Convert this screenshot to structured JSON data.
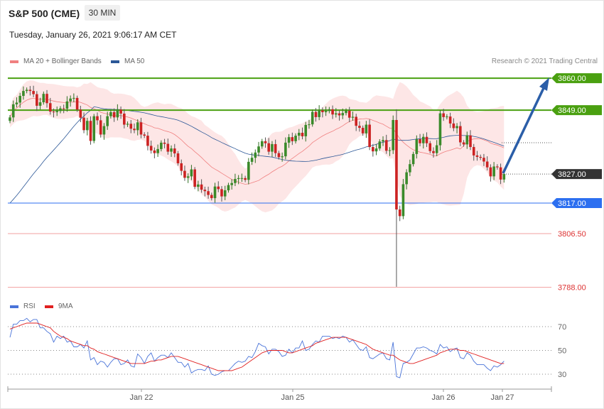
{
  "header": {
    "title": "S&P 500 (CME)",
    "timeframe": "30 MIN",
    "datetime": "Tuesday, January 26, 2021 9:06:17 AM CET",
    "copyright": "Research © 2021 Trading Central"
  },
  "legend": {
    "ma20": "MA 20 + Bollinger Bands",
    "ma50": "MA 50",
    "rsi": "RSI",
    "rsi_ma": "9MA"
  },
  "colors": {
    "ma20": "#f08080",
    "ma50": "#2b5797",
    "rsi": "#4a74d9",
    "rsi_ma": "#e02020",
    "up": "#3a8a2a",
    "down": "#cc2222",
    "resistance": "#4aa010",
    "support": "#2c6ff0",
    "support_red": "#dd3333",
    "current": "#333333",
    "bands": "#fde2e2",
    "arrow": "#2b5ea8"
  },
  "chart_data": [
    {
      "type": "candlestick",
      "x_ticks": [
        "Jan 22",
        "Jan 25",
        "Jan 26",
        "Jan 27"
      ],
      "ylim": [
        3782,
        3866
      ],
      "levels": [
        {
          "label": "3860.00",
          "value": 3860.0,
          "kind": "resistance"
        },
        {
          "label": "3849.00",
          "value": 3849.0,
          "kind": "resistance"
        },
        {
          "label": "3827.00",
          "value": 3827.0,
          "kind": "current"
        },
        {
          "label": "3817.00",
          "value": 3817.0,
          "kind": "support"
        },
        {
          "label": "3806.50",
          "value": 3806.5,
          "kind": "support_red"
        },
        {
          "label": "3788.00",
          "value": 3788.0,
          "kind": "support_red"
        }
      ],
      "close": [
        3846.5,
        3851.0,
        3851.6,
        3853.9,
        3855.6,
        3856.0,
        3855.6,
        3854.5,
        3850.5,
        3851.7,
        3854.6,
        3851.4,
        3848.5,
        3848.3,
        3848.7,
        3849.6,
        3849.5,
        3852.0,
        3853.0,
        3853.2,
        3849.2,
        3846.4,
        3842.1,
        3845.3,
        3838.4,
        3846.9,
        3845.5,
        3840.6,
        3843.5,
        3846.9,
        3848.3,
        3846.5,
        3849.2,
        3847.8,
        3844.0,
        3844.3,
        3842.6,
        3842.1,
        3844.8,
        3840.6,
        3840.2,
        3836.7,
        3835.1,
        3834.2,
        3835.6,
        3837.8,
        3837.4,
        3834.7,
        3835.8,
        3834.1,
        3830.7,
        3828.1,
        3825.7,
        3826.2,
        3828.6,
        3822.6,
        3823.4,
        3821.6,
        3821.1,
        3819.8,
        3818.7,
        3822.7,
        3821.8,
        3819.3,
        3821.4,
        3823.2,
        3823.9,
        3825.3,
        3825.6,
        3825.6,
        3825.0,
        3831.2,
        3832.6,
        3834.4,
        3836.5,
        3838.3,
        3837.6,
        3834.7,
        3837.3,
        3834.2,
        3832.8,
        3833.1,
        3837.8,
        3839.7,
        3838.3,
        3840.2,
        3841.2,
        3840.0,
        3843.9,
        3844.1,
        3848.4,
        3846.6,
        3848.9,
        3848.3,
        3848.7,
        3849.3,
        3847.5,
        3847.9,
        3847.2,
        3848.0,
        3848.8,
        3846.4,
        3846.7,
        3843.6,
        3842.9,
        3841.0,
        3844.0,
        3836.3,
        3834.8,
        3835.8,
        3838.2,
        3838.7,
        3835.0,
        3835.2,
        3845.6,
        3814.8,
        3812.5,
        3823.5,
        3827.6,
        3830.4,
        3833.9,
        3839.0,
        3837.6,
        3839.8,
        3837.6,
        3834.9,
        3834.2,
        3836.9,
        3847.9,
        3846.6,
        3846.8,
        3844.4,
        3842.8,
        3843.5,
        3837.9,
        3837.2,
        3840.3,
        3836.3,
        3833.4,
        3832.9,
        3832.6,
        3831.3,
        3829.3,
        3826.2,
        3829.6,
        3829.3,
        3825.1,
        3827.0
      ]
    },
    {
      "type": "line",
      "title": "RSI",
      "y_ticks": [
        70,
        50,
        30
      ],
      "series": [
        {
          "name": "RSI",
          "values": [
            61,
            72,
            72,
            75,
            75,
            77,
            74,
            76,
            76,
            69,
            69,
            66,
            64,
            57,
            62,
            60,
            62,
            57,
            58,
            53,
            53,
            55,
            52,
            58,
            42,
            44,
            38,
            41,
            40,
            36,
            40,
            43,
            43,
            38,
            39,
            42,
            37,
            36,
            47,
            44,
            39,
            45,
            48,
            41,
            44,
            46,
            46,
            44,
            48,
            44,
            40,
            40,
            36,
            39,
            31,
            33,
            34,
            34,
            33,
            37,
            30,
            29,
            30,
            32,
            33,
            33,
            36,
            39,
            41,
            40,
            41,
            45,
            44,
            49,
            56,
            54,
            53,
            47,
            51,
            51,
            49,
            45,
            46,
            51,
            48,
            52,
            52,
            58,
            50,
            51,
            55,
            58,
            57,
            62,
            62,
            62,
            60,
            61,
            60,
            62,
            61,
            57,
            59,
            55,
            51,
            50,
            53,
            44,
            43,
            45,
            47,
            48,
            43,
            42,
            57,
            28,
            27,
            39,
            40,
            42,
            47,
            52,
            52,
            53,
            52,
            50,
            49,
            47,
            55,
            52,
            53,
            49,
            51,
            52,
            44,
            43,
            48,
            46,
            41,
            38,
            38,
            38,
            35,
            33,
            37,
            36,
            38,
            41
          ]
        },
        {
          "name": "9MA",
          "values": [
            68,
            69,
            70,
            71,
            72,
            73,
            73,
            73,
            73,
            72,
            71,
            70,
            69,
            66,
            64,
            62,
            61,
            60,
            58,
            57,
            56,
            55,
            54,
            54,
            52,
            51,
            49,
            48,
            47,
            46,
            45,
            44,
            43,
            42,
            41,
            40,
            39,
            39,
            39,
            39,
            39,
            40,
            41,
            41,
            42,
            42,
            43,
            44,
            45,
            45,
            45,
            44,
            43,
            42,
            41,
            40,
            39,
            38,
            37,
            36,
            35,
            34,
            33,
            33,
            33,
            33,
            33,
            34,
            35,
            36,
            38,
            40,
            42,
            44,
            46,
            48,
            49,
            50,
            50,
            50,
            50,
            50,
            49,
            48,
            48,
            49,
            50,
            51,
            52,
            53,
            54,
            56,
            57,
            58,
            59,
            60,
            61,
            61,
            61,
            61,
            61,
            60,
            59,
            58,
            57,
            56,
            55,
            53,
            51,
            50,
            49,
            48,
            47,
            46,
            46,
            44,
            42,
            41,
            40,
            39,
            39,
            40,
            41,
            42,
            43,
            44,
            45,
            46,
            48,
            49,
            50,
            51,
            51,
            51,
            50,
            50,
            49,
            48,
            47,
            46,
            45,
            44,
            43,
            42,
            41,
            40,
            39,
            39
          ]
        }
      ]
    }
  ]
}
